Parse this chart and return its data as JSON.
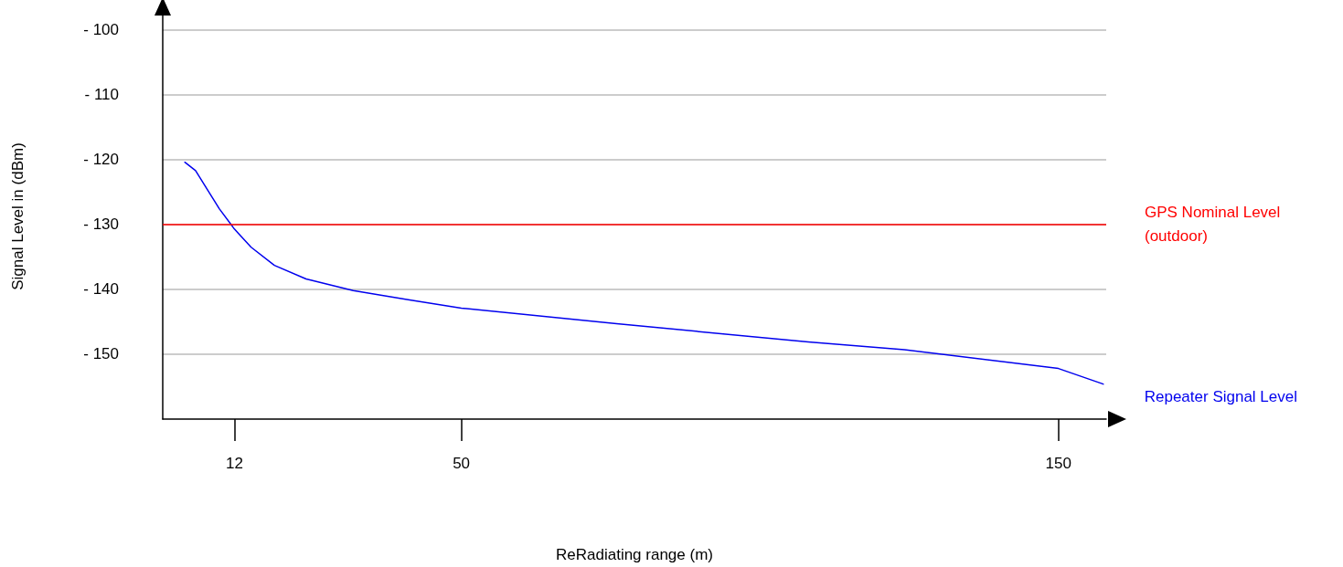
{
  "chart_data": {
    "type": "line",
    "xlabel": "ReRadiating range (m)",
    "ylabel": "Signal Level in (dBm)",
    "xlim": [
      0,
      158
    ],
    "xticks": [
      12,
      50,
      150
    ],
    "ylim": [
      -160,
      -97.5
    ],
    "yticks": [
      {
        "value": -100,
        "label": "- 100"
      },
      {
        "value": -110,
        "label": "- 110"
      },
      {
        "value": -120,
        "label": "- 120"
      },
      {
        "value": -130,
        "label": "- 130"
      },
      {
        "value": -140,
        "label": "- 140"
      },
      {
        "value": -150,
        "label": "- 150"
      }
    ],
    "grid": "y",
    "marker": "none",
    "line_style": "solid",
    "series": [
      {
        "name": "Repeater Signal Level",
        "color": "#0000ee",
        "x": [
          3.7,
          5.5,
          7.4,
          9.5,
          12,
          14.8,
          18.7,
          24,
          31.9,
          41.1,
          50,
          76,
          108.1,
          124.2,
          150,
          157.5
        ],
        "values": [
          -120.4,
          -121.7,
          -124.5,
          -127.6,
          -130.7,
          -133.5,
          -136.3,
          -138.4,
          -140.2,
          -141.6,
          -142.9,
          -145.3,
          -148.1,
          -149.3,
          -152.2,
          -154.6
        ]
      }
    ],
    "ref_lines": [
      {
        "axis": "y",
        "value": -130,
        "label": "GPS Nominal Level (outdoor)",
        "color": "#ff0000"
      }
    ]
  }
}
